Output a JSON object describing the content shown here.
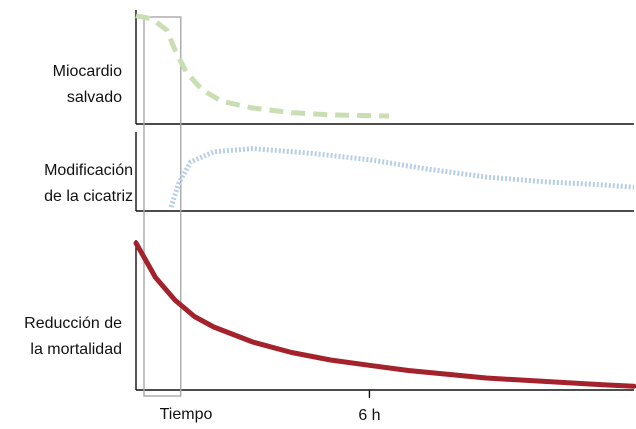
{
  "chart_data": [
    {
      "type": "line",
      "title": "",
      "ylabel": [
        "Miocardio",
        "salvado"
      ],
      "series": [
        {
          "color": "#c9dfb3",
          "style": "dashed",
          "points": [
            [
              0.0,
              0.95
            ],
            [
              0.3,
              0.93
            ],
            [
              0.5,
              0.9
            ],
            [
              0.8,
              0.82
            ],
            [
              1.0,
              0.65
            ],
            [
              1.3,
              0.45
            ],
            [
              1.7,
              0.3
            ],
            [
              2.2,
              0.2
            ],
            [
              3.0,
              0.14
            ],
            [
              4.0,
              0.1
            ],
            [
              5.0,
              0.08
            ],
            [
              6.5,
              0.07
            ]
          ]
        }
      ]
    },
    {
      "type": "line",
      "title": "",
      "ylabel": [
        "Modificación",
        "de la cicatriz"
      ],
      "series": [
        {
          "color": "#b7cee6",
          "style": "dotted",
          "points": [
            [
              0.9,
              0.05
            ],
            [
              1.1,
              0.35
            ],
            [
              1.4,
              0.62
            ],
            [
              2.0,
              0.75
            ],
            [
              3.0,
              0.79
            ],
            [
              4.5,
              0.73
            ],
            [
              6.0,
              0.65
            ],
            [
              7.5,
              0.53
            ],
            [
              9.0,
              0.43
            ],
            [
              10.5,
              0.37
            ],
            [
              12.0,
              0.33
            ],
            [
              12.8,
              0.3
            ]
          ]
        }
      ]
    },
    {
      "type": "line",
      "title": "",
      "ylabel": [
        "Reducción de",
        "la mortalidad"
      ],
      "xlabel": "Tiempo",
      "xticks": [
        {
          "value": 6,
          "label": "6 h"
        }
      ],
      "series": [
        {
          "color": "#a3222b",
          "style": "solid",
          "points": [
            [
              0.0,
              0.98
            ],
            [
              0.5,
              0.75
            ],
            [
              1.0,
              0.6
            ],
            [
              1.5,
              0.49
            ],
            [
              2.0,
              0.42
            ],
            [
              3.0,
              0.32
            ],
            [
              4.0,
              0.25
            ],
            [
              5.0,
              0.2
            ],
            [
              6.0,
              0.165
            ],
            [
              7.0,
              0.13
            ],
            [
              8.0,
              0.105
            ],
            [
              9.0,
              0.08
            ],
            [
              10.0,
              0.065
            ],
            [
              11.0,
              0.05
            ],
            [
              12.0,
              0.035
            ],
            [
              12.8,
              0.025
            ]
          ]
        }
      ]
    }
  ],
  "highlight": {
    "x_range": [
      0,
      1.15
    ],
    "color": "#a8a8a8"
  }
}
